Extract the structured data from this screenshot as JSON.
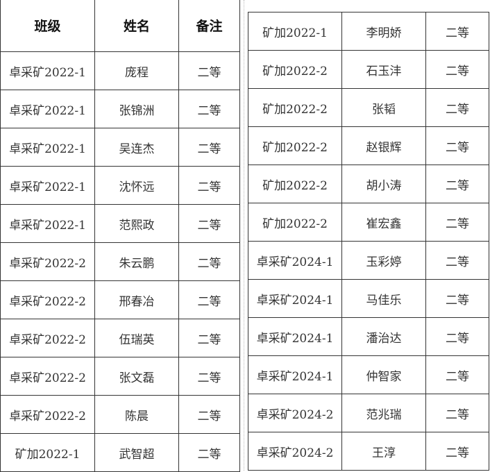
{
  "left_table": {
    "headers": [
      "班级",
      "姓名",
      "备注"
    ],
    "rows": [
      [
        "卓采矿2022-1",
        "庞程",
        "二等"
      ],
      [
        "卓采矿2022-1",
        "张锦洲",
        "二等"
      ],
      [
        "卓采矿2022-1",
        "吴连杰",
        "二等"
      ],
      [
        "卓采矿2022-1",
        "沈怀远",
        "二等"
      ],
      [
        "卓采矿2022-1",
        "范熙政",
        "二等"
      ],
      [
        "卓采矿2022-2",
        "朱云鹏",
        "二等"
      ],
      [
        "卓采矿2022-2",
        "邢春冶",
        "二等"
      ],
      [
        "卓采矿2022-2",
        "伍瑞英",
        "二等"
      ],
      [
        "卓采矿2022-2",
        "张文磊",
        "二等"
      ],
      [
        "卓采矿2022-2",
        "陈晨",
        "二等"
      ],
      [
        "矿加2022-1",
        "武智超",
        "二等"
      ]
    ]
  },
  "right_table": {
    "rows": [
      [
        "矿加2022-1",
        "李明娇",
        "二等"
      ],
      [
        "矿加2022-2",
        "石玉沣",
        "二等"
      ],
      [
        "矿加2022-2",
        "张韬",
        "二等"
      ],
      [
        "矿加2022-2",
        "赵银辉",
        "二等"
      ],
      [
        "矿加2022-2",
        "胡小涛",
        "二等"
      ],
      [
        "矿加2022-2",
        "崔宏鑫",
        "二等"
      ],
      [
        "卓采矿2024-1",
        "玉彩婷",
        "二等"
      ],
      [
        "卓采矿2024-1",
        "马佳乐",
        "二等"
      ],
      [
        "卓采矿2024-1",
        "潘治达",
        "二等"
      ],
      [
        "卓采矿2024-1",
        "仲智家",
        "二等"
      ],
      [
        "卓采矿2024-2",
        "范兆瑞",
        "二等"
      ],
      [
        "卓采矿2024-2",
        "王淳",
        "二等"
      ]
    ]
  }
}
